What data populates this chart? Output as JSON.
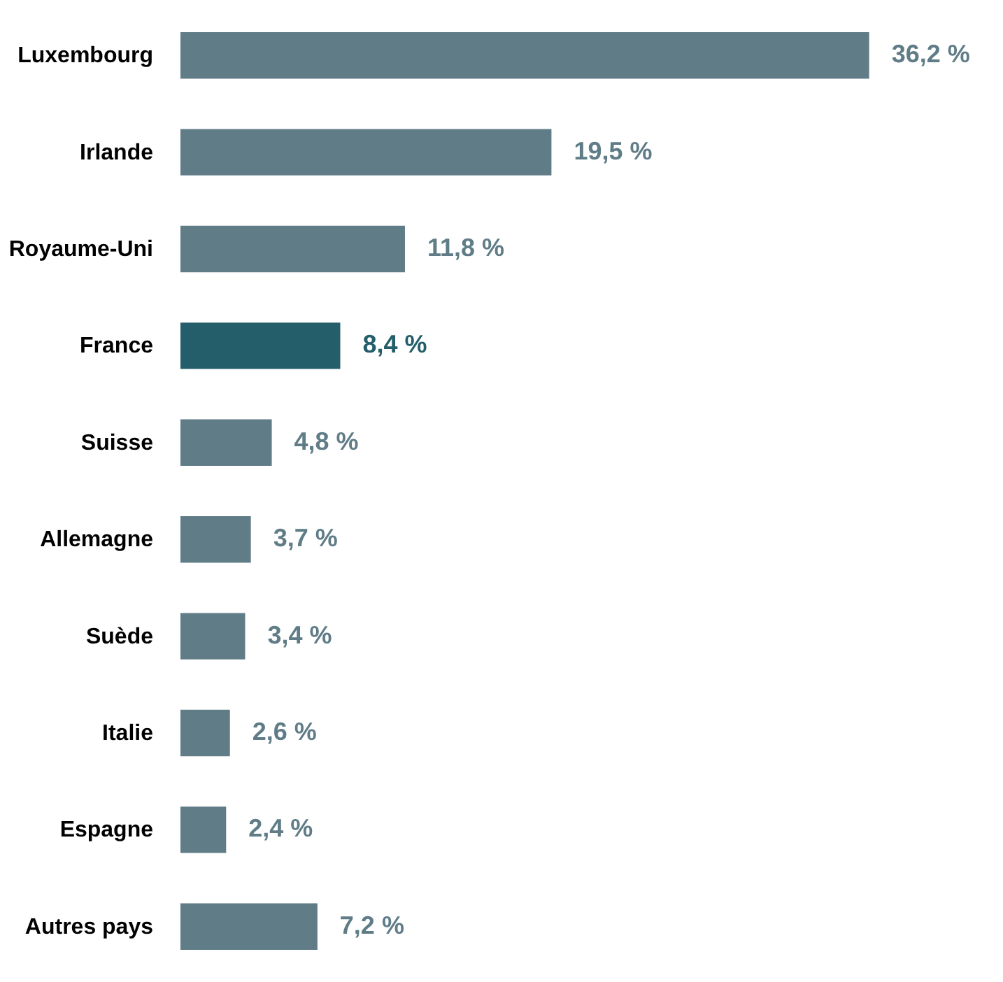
{
  "chart_data": {
    "type": "bar",
    "orientation": "horizontal",
    "categories": [
      "Luxembourg",
      "Irlande",
      "Royaume-Uni",
      "France",
      "Suisse",
      "Allemagne",
      "Suède",
      "Italie",
      "Espagne",
      "Autres pays"
    ],
    "values": [
      36.2,
      19.5,
      11.8,
      8.4,
      4.8,
      3.7,
      3.4,
      2.6,
      2.4,
      7.2
    ],
    "value_labels": [
      "36,2 %",
      "19,5 %",
      "11,8 %",
      "8,4 %",
      "4,8 %",
      "3,7 %",
      "3,4 %",
      "2,6 %",
      "2,4 %",
      "7,2 %"
    ],
    "colors": [
      "#5f7c87",
      "#5f7c87",
      "#5f7c87",
      "#245e6a",
      "#5f7c87",
      "#5f7c87",
      "#5f7c87",
      "#5f7c87",
      "#5f7c87",
      "#5f7c87"
    ],
    "grid": false
  }
}
